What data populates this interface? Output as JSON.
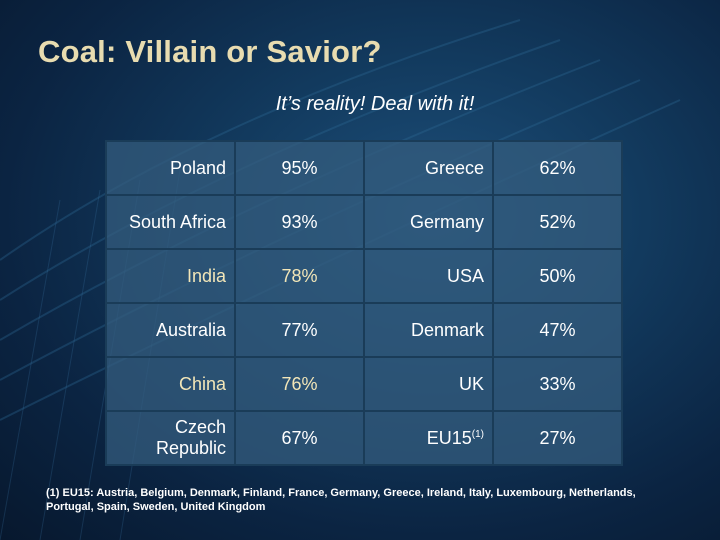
{
  "slide": {
    "title": "Coal: Villain or Savior?",
    "subtitle": "It’s reality! Deal with it!"
  },
  "table": {
    "rows": [
      {
        "c1": "Poland",
        "v1": "95%",
        "c2": "Greece",
        "v2": "62%"
      },
      {
        "c1": "South Africa",
        "v1": "93%",
        "c2": "Germany",
        "v2": "52%"
      },
      {
        "c1": "India",
        "v1": "78%",
        "c2": "USA",
        "v2": "50%"
      },
      {
        "c1": "Australia",
        "v1": "77%",
        "c2": "Denmark",
        "v2": "47%"
      },
      {
        "c1": "China",
        "v1": "76%",
        "c2": "UK",
        "v2": "33%"
      },
      {
        "c1": "Czech Republic",
        "v1": "67%",
        "c2": "EU15",
        "c2_sup": "(1)",
        "v2": "27%"
      }
    ],
    "highlight_color": "#f2e6b8"
  },
  "footnote": "(1) EU15: Austria, Belgium, Denmark, Finland, France, Germany, Greece, Ireland, Italy, Luxembourg, Netherlands, Portugal, Spain, Sweden, United Kingdom"
}
